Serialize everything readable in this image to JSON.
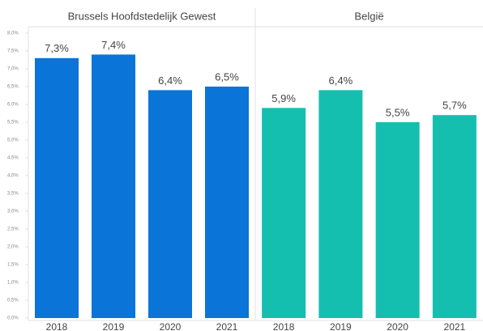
{
  "chart_data": [
    {
      "type": "bar",
      "title": "Brussels Hoofdstedelijk Gewest",
      "categories": [
        "2018",
        "2019",
        "2020",
        "2021"
      ],
      "values": [
        7.3,
        7.4,
        6.4,
        6.5
      ],
      "value_labels": [
        "7,3%",
        "7,4%",
        "6,4%",
        "6,5%"
      ],
      "color": "#0a74d8",
      "ylim": [
        0,
        8
      ],
      "yticks": [
        {
          "value": 0,
          "label": "0,0%"
        },
        {
          "value": 0.5,
          "label": "0,5%"
        },
        {
          "value": 1,
          "label": "1,0%"
        },
        {
          "value": 1.5,
          "label": "1,5%"
        },
        {
          "value": 2,
          "label": "2,0%"
        },
        {
          "value": 2.5,
          "label": "2,5%"
        },
        {
          "value": 3,
          "label": "3,0%"
        },
        {
          "value": 3.5,
          "label": "3,5%"
        },
        {
          "value": 4,
          "label": "4,0%"
        },
        {
          "value": 4.5,
          "label": "4,5%"
        },
        {
          "value": 5,
          "label": "5,0%"
        },
        {
          "value": 5.5,
          "label": "5,5%"
        },
        {
          "value": 6,
          "label": "6,0%"
        },
        {
          "value": 6.5,
          "label": "6,5%"
        },
        {
          "value": 7,
          "label": "7,0%"
        },
        {
          "value": 7.5,
          "label": "7,5%"
        },
        {
          "value": 8,
          "label": "8,0%"
        }
      ]
    },
    {
      "type": "bar",
      "title": "België",
      "categories": [
        "2018",
        "2019",
        "2020",
        "2021"
      ],
      "values": [
        5.9,
        6.4,
        5.5,
        5.7
      ],
      "value_labels": [
        "5,9%",
        "6,4%",
        "5,5%",
        "5,7%"
      ],
      "color": "#14bfb0",
      "ylim": [
        0,
        8
      ]
    }
  ]
}
